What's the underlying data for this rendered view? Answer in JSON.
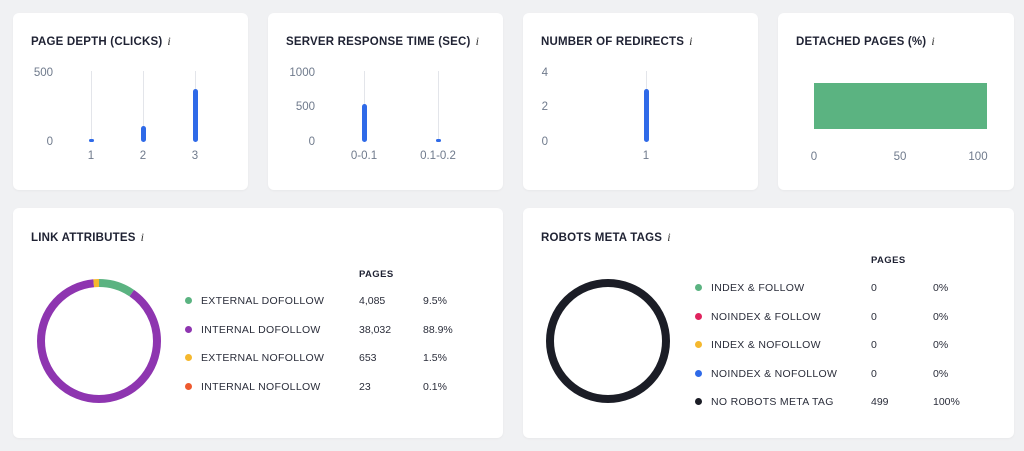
{
  "cards": {
    "page_depth": {
      "title": "PAGE DEPTH (CLICKS)",
      "info": "i",
      "y_ticks": [
        "500",
        "0"
      ]
    },
    "server_response": {
      "title": "SERVER RESPONSE TIME (SEC)",
      "info": "i",
      "y_ticks": [
        "1000",
        "500",
        "0"
      ]
    },
    "redirects": {
      "title": "NUMBER OF REDIRECTS",
      "info": "i",
      "y_ticks": [
        "4",
        "2",
        "0"
      ]
    },
    "detached": {
      "title": "DETACHED PAGES (%)",
      "info": "i",
      "x_ticks": [
        "0",
        "50",
        "100"
      ]
    }
  },
  "chart_data": [
    {
      "type": "bar",
      "title": "PAGE DEPTH (CLICKS)",
      "categories": [
        "1",
        "2",
        "3"
      ],
      "values": [
        20,
        110,
        375
      ],
      "ylim": [
        0,
        500
      ]
    },
    {
      "type": "bar",
      "title": "SERVER RESPONSE TIME (SEC)",
      "categories": [
        "0-0.1",
        "0.1-0.2"
      ],
      "values": [
        530,
        10
      ],
      "ylim": [
        0,
        1000
      ]
    },
    {
      "type": "bar",
      "title": "NUMBER OF REDIRECTS",
      "categories": [
        "1"
      ],
      "values": [
        3
      ],
      "ylim": [
        0,
        4
      ]
    },
    {
      "type": "bar",
      "orientation": "horizontal",
      "title": "DETACHED PAGES (%)",
      "values": [
        100
      ],
      "xlim": [
        0,
        100
      ]
    },
    {
      "type": "pie",
      "title": "LINK ATTRIBUTES",
      "categories": [
        "EXTERNAL DOFOLLOW",
        "INTERNAL DOFOLLOW",
        "EXTERNAL NOFOLLOW",
        "INTERNAL NOFOLLOW"
      ],
      "values": [
        4085,
        38032,
        653,
        23
      ],
      "percents": [
        "9.5%",
        "88.9%",
        "1.5%",
        "0.1%"
      ]
    },
    {
      "type": "pie",
      "title": "ROBOTS META TAGS",
      "categories": [
        "INDEX & FOLLOW",
        "NOINDEX & FOLLOW",
        "INDEX & NOFOLLOW",
        "NOINDEX & NOFOLLOW",
        "NO ROBOTS META TAG"
      ],
      "values": [
        0,
        0,
        0,
        0,
        499
      ],
      "percents": [
        "0%",
        "0%",
        "0%",
        "0%",
        "100%"
      ]
    }
  ],
  "link_attributes": {
    "title": "LINK ATTRIBUTES",
    "info": "i",
    "pages_header": "PAGES",
    "rows": [
      {
        "label": "EXTERNAL DOFOLLOW",
        "pages": "4,085",
        "pct": "9.5%",
        "color": "#5bb381"
      },
      {
        "label": "INTERNAL DOFOLLOW",
        "pages": "38,032",
        "pct": "88.9%",
        "color": "#8e35b0"
      },
      {
        "label": "EXTERNAL NOFOLLOW",
        "pages": "653",
        "pct": "1.5%",
        "color": "#f5b82e"
      },
      {
        "label": "INTERNAL NOFOLLOW",
        "pages": "23",
        "pct": "0.1%",
        "color": "#ee5a2f"
      }
    ]
  },
  "robots": {
    "title": "ROBOTS META TAGS",
    "info": "i",
    "pages_header": "PAGES",
    "rows": [
      {
        "label": "INDEX & FOLLOW",
        "pages": "0",
        "pct": "0%",
        "color": "#5bb381"
      },
      {
        "label": "NOINDEX & FOLLOW",
        "pages": "0",
        "pct": "0%",
        "color": "#e0245e"
      },
      {
        "label": "INDEX & NOFOLLOW",
        "pages": "0",
        "pct": "0%",
        "color": "#f5b82e"
      },
      {
        "label": "NOINDEX & NOFOLLOW",
        "pages": "0",
        "pct": "0%",
        "color": "#2f6ae8"
      },
      {
        "label": "NO ROBOTS META TAG",
        "pages": "499",
        "pct": "100%",
        "color": "#1b1d26"
      }
    ]
  }
}
